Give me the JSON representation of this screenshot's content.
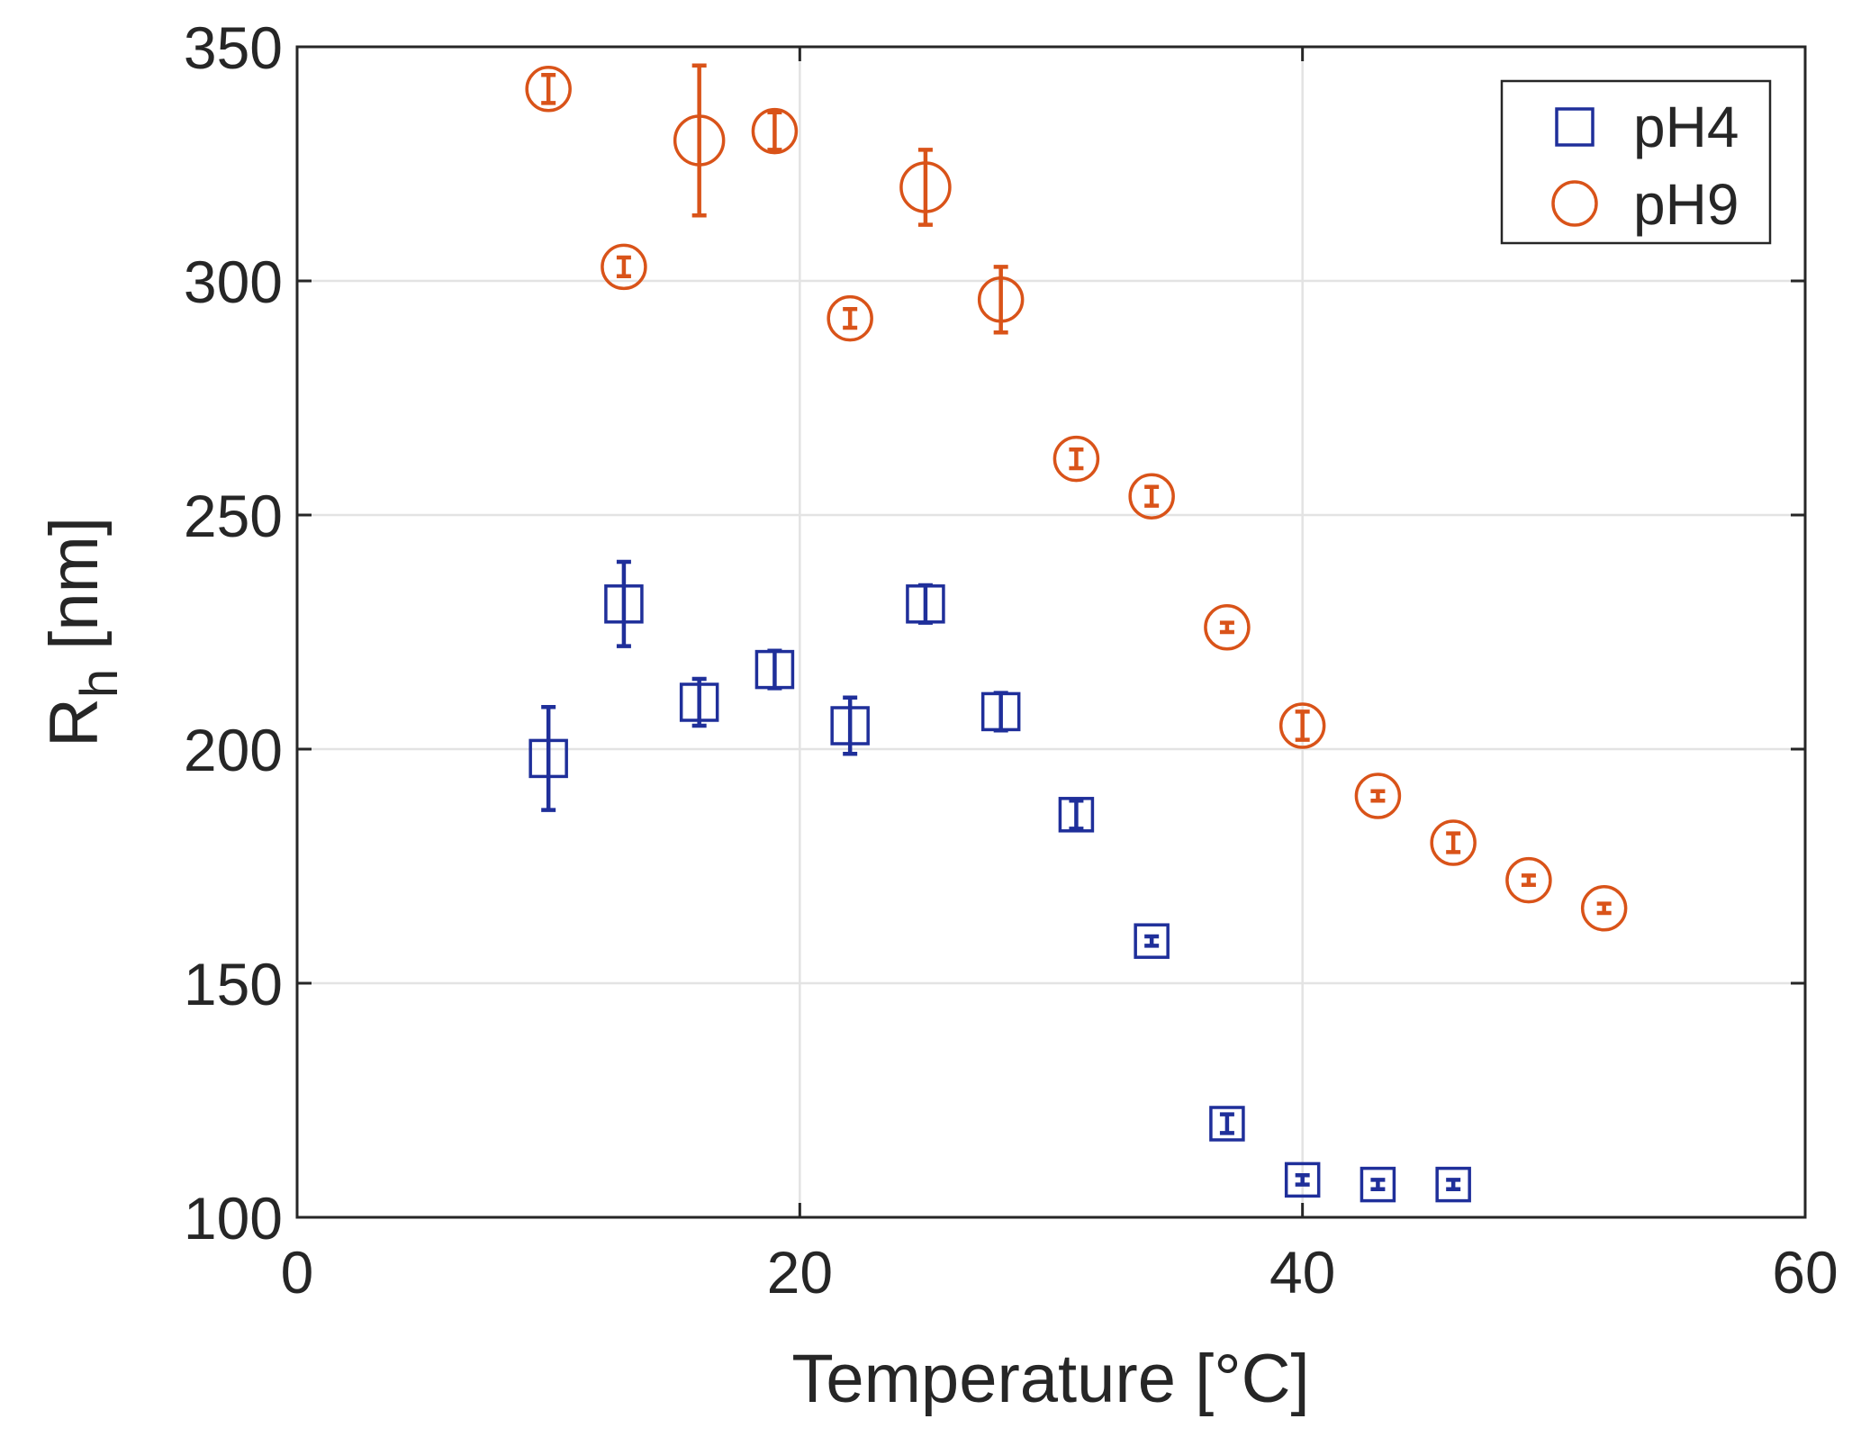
{
  "chart_data": {
    "type": "scatter",
    "title": "",
    "xlabel": "Temperature [°C]",
    "ylabel_main": "R",
    "ylabel_sub": "h",
    "ylabel_unit": "[nm]",
    "xlim": [
      0,
      60
    ],
    "ylim": [
      100,
      350
    ],
    "xticks": [
      0,
      20,
      40,
      60
    ],
    "yticks": [
      100,
      150,
      200,
      250,
      300,
      350
    ],
    "grid": true,
    "legend_position": "top-right",
    "series": [
      {
        "name": "pH4",
        "marker": "square",
        "color": "#1f2f9a",
        "points": [
          {
            "x": 10,
            "y": 198,
            "err": 11
          },
          {
            "x": 13,
            "y": 231,
            "err": 9
          },
          {
            "x": 16,
            "y": 210,
            "err": 5
          },
          {
            "x": 19,
            "y": 217,
            "err": 4
          },
          {
            "x": 22,
            "y": 205,
            "err": 6
          },
          {
            "x": 25,
            "y": 231,
            "err": 4
          },
          {
            "x": 28,
            "y": 208,
            "err": 4
          },
          {
            "x": 31,
            "y": 186,
            "err": 3
          },
          {
            "x": 34,
            "y": 159,
            "err": 1
          },
          {
            "x": 37,
            "y": 120,
            "err": 2
          },
          {
            "x": 40,
            "y": 108,
            "err": 1
          },
          {
            "x": 43,
            "y": 107,
            "err": 1
          },
          {
            "x": 46,
            "y": 107,
            "err": 1
          }
        ]
      },
      {
        "name": "pH9",
        "marker": "circle",
        "color": "#d95319",
        "points": [
          {
            "x": 10,
            "y": 341,
            "err": 3
          },
          {
            "x": 13,
            "y": 303,
            "err": 2
          },
          {
            "x": 16,
            "y": 330,
            "err": 16
          },
          {
            "x": 19,
            "y": 332,
            "err": 4
          },
          {
            "x": 22,
            "y": 292,
            "err": 2
          },
          {
            "x": 25,
            "y": 320,
            "err": 8
          },
          {
            "x": 28,
            "y": 296,
            "err": 7
          },
          {
            "x": 31,
            "y": 262,
            "err": 2
          },
          {
            "x": 34,
            "y": 254,
            "err": 2
          },
          {
            "x": 37,
            "y": 226,
            "err": 1
          },
          {
            "x": 40,
            "y": 205,
            "err": 3
          },
          {
            "x": 43,
            "y": 190,
            "err": 1
          },
          {
            "x": 46,
            "y": 180,
            "err": 2
          },
          {
            "x": 49,
            "y": 172,
            "err": 1
          },
          {
            "x": 52,
            "y": 166,
            "err": 1
          }
        ]
      }
    ]
  }
}
